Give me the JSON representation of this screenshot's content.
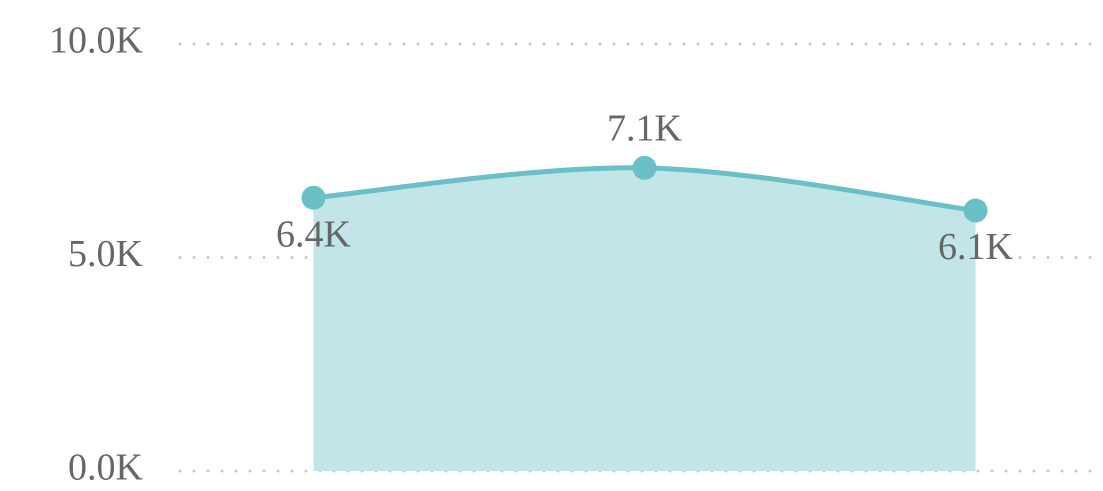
{
  "chart_data": {
    "type": "area",
    "categories": [
      null,
      null,
      null
    ],
    "values": [
      6400,
      7100,
      6100
    ],
    "value_labels": [
      "6.4K",
      "7.1K",
      "6.1K"
    ],
    "color": "#6bbfc7",
    "fill": "#c2e5e8",
    "ylim": [
      0,
      10000
    ],
    "yticks": [
      {
        "value": 0,
        "label": "0.0K"
      },
      {
        "value": 5000,
        "label": "5.0K"
      },
      {
        "value": 10000,
        "label": "10.0K"
      }
    ],
    "grid": true
  }
}
